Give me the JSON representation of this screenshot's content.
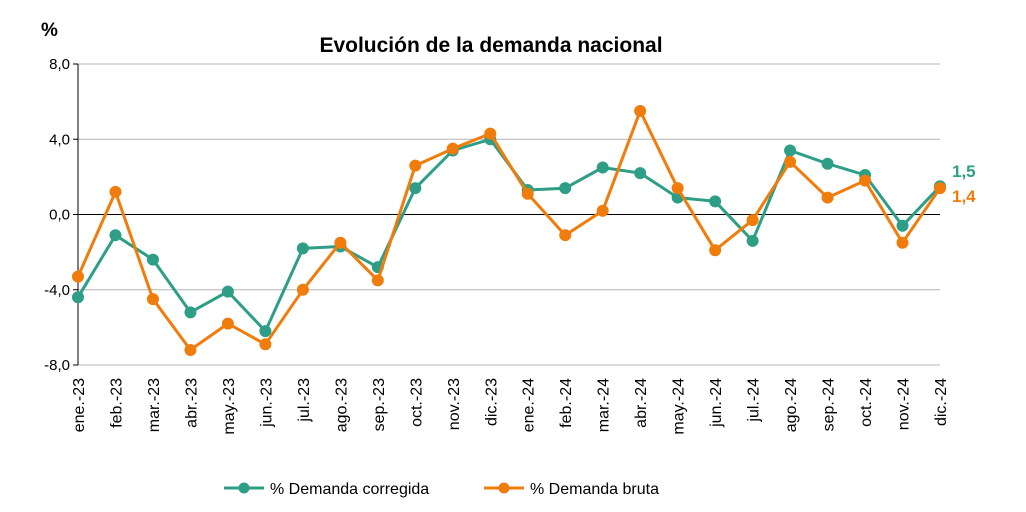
{
  "chart_data": {
    "type": "line",
    "title": "Evolución de la demanda nacional",
    "unit_label": "%",
    "categories": [
      "ene.-23",
      "feb.-23",
      "mar.-23",
      "abr.-23",
      "may.-23",
      "jun.-23",
      "jul.-23",
      "ago.-23",
      "sep.-23",
      "oct.-23",
      "nov.-23",
      "dic.-23",
      "ene.-24",
      "feb.-24",
      "mar.-24",
      "abr.-24",
      "may.-24",
      "jun.-24",
      "jul.-24",
      "ago.-24",
      "sep.-24",
      "oct.-24",
      "nov.-24",
      "dic.-24"
    ],
    "ylim": [
      -8,
      8
    ],
    "yticks": [
      8,
      4,
      0,
      -4,
      -8
    ],
    "ytick_labels": [
      "8,0",
      "4,0",
      "0,0",
      "-4,0",
      "-8,0"
    ],
    "grid": true,
    "legend_position": "bottom",
    "series": [
      {
        "name": "% Demanda corregida",
        "color": "#2e9e86",
        "values": [
          -4.4,
          -1.1,
          -2.4,
          -5.2,
          -4.1,
          -6.2,
          -1.8,
          -1.7,
          -2.8,
          1.4,
          3.4,
          4.0,
          1.3,
          1.4,
          2.5,
          2.2,
          0.9,
          0.7,
          -1.4,
          3.4,
          2.7,
          2.1,
          -0.6,
          1.5
        ],
        "end_label": "1,5"
      },
      {
        "name": "% Demanda bruta",
        "color": "#f07c0c",
        "values": [
          -3.3,
          1.2,
          -4.5,
          -7.2,
          -5.8,
          -6.9,
          -4.0,
          -1.5,
          -3.5,
          2.6,
          3.5,
          4.3,
          1.1,
          -1.1,
          0.2,
          5.5,
          1.4,
          -1.9,
          -0.3,
          2.8,
          0.9,
          1.8,
          -1.5,
          1.4
        ],
        "end_label": "1,4"
      }
    ]
  }
}
